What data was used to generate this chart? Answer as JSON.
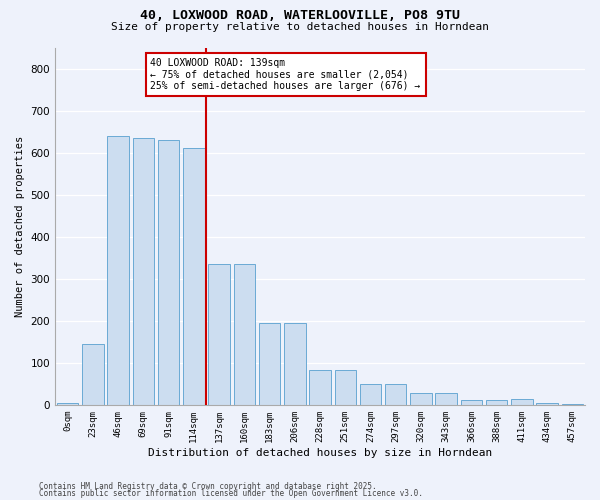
{
  "title_line1": "40, LOXWOOD ROAD, WATERLOOVILLE, PO8 9TU",
  "title_line2": "Size of property relative to detached houses in Horndean",
  "xlabel": "Distribution of detached houses by size in Horndean",
  "ylabel": "Number of detached properties",
  "bar_color": "#ccddf0",
  "bar_edge_color": "#6aaad4",
  "background_color": "#eef2fb",
  "grid_color": "#ffffff",
  "vline_color": "#cc0000",
  "annotation_text": "40 LOXWOOD ROAD: 139sqm\n← 75% of detached houses are smaller (2,054)\n25% of semi-detached houses are larger (676) →",
  "annotation_box_facecolor": "#ffffff",
  "annotation_box_edgecolor": "#cc0000",
  "categories": [
    "0sqm",
    "23sqm",
    "46sqm",
    "69sqm",
    "91sqm",
    "114sqm",
    "137sqm",
    "160sqm",
    "183sqm",
    "206sqm",
    "228sqm",
    "251sqm",
    "274sqm",
    "297sqm",
    "320sqm",
    "343sqm",
    "366sqm",
    "388sqm",
    "411sqm",
    "434sqm",
    "457sqm"
  ],
  "values": [
    5,
    145,
    640,
    635,
    630,
    610,
    335,
    335,
    195,
    195,
    83,
    83,
    50,
    50,
    28,
    28,
    12,
    12,
    15,
    5,
    2
  ],
  "ylim": [
    0,
    850
  ],
  "yticks": [
    0,
    100,
    200,
    300,
    400,
    500,
    600,
    700,
    800
  ],
  "vline_index": 6,
  "footnote1": "Contains HM Land Registry data © Crown copyright and database right 2025.",
  "footnote2": "Contains public sector information licensed under the Open Government Licence v3.0."
}
